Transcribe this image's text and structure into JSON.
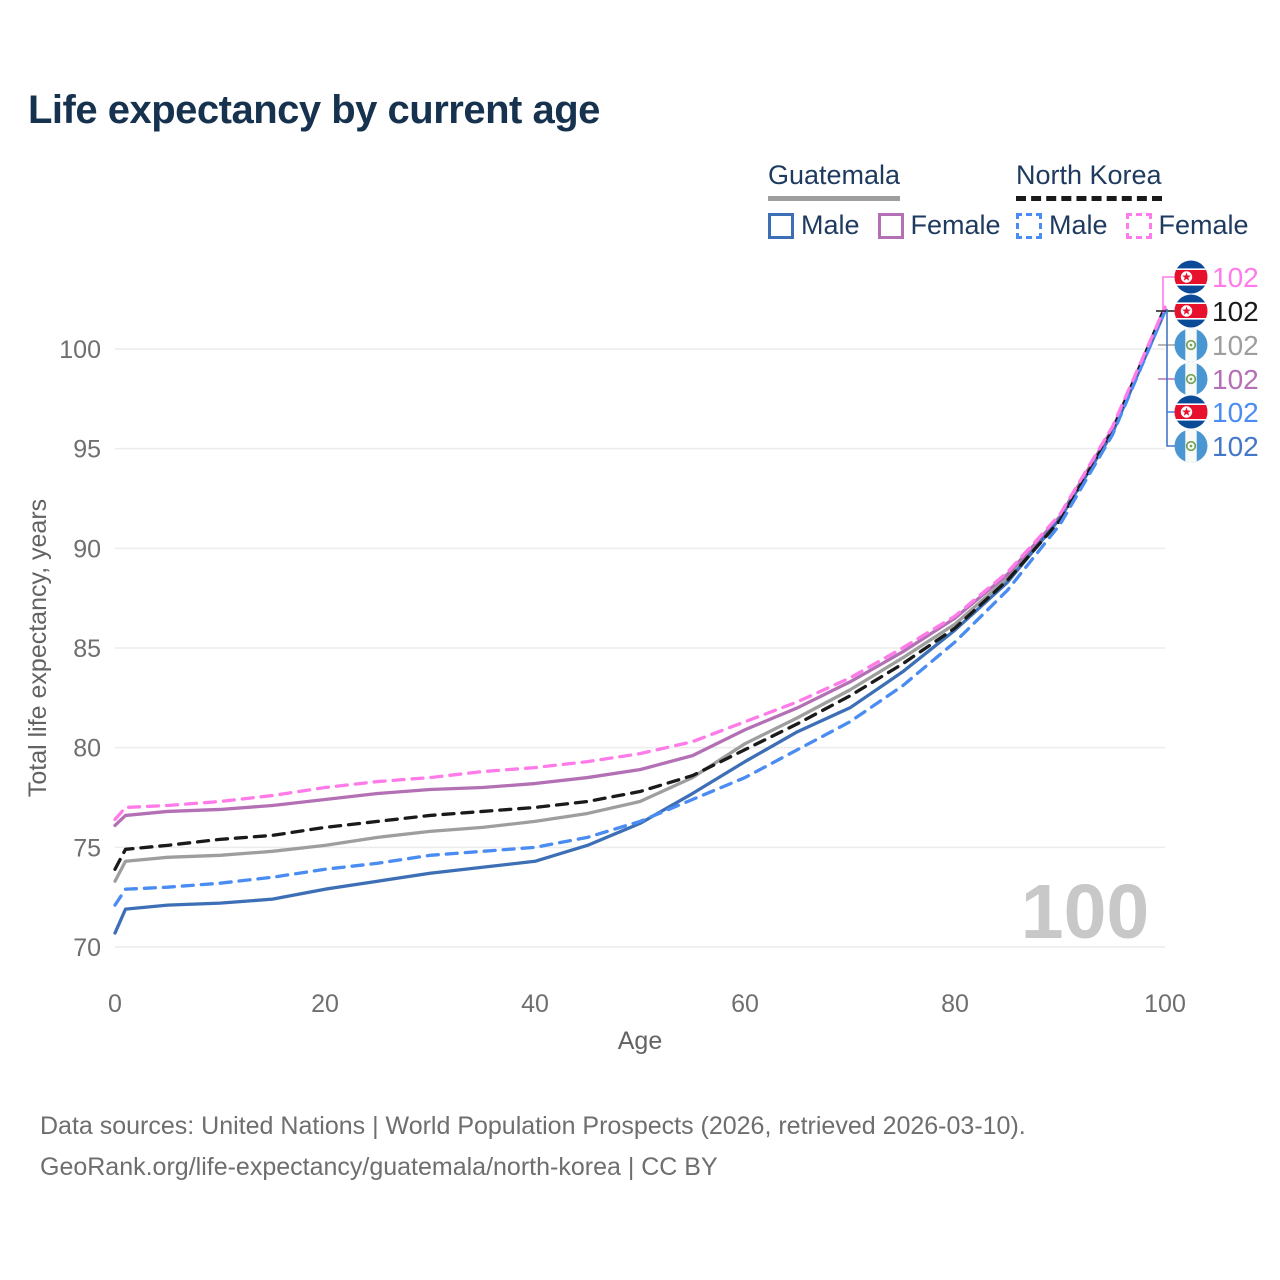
{
  "title": "Life expectancy by current age",
  "legend": {
    "groups": [
      {
        "country": "Guatemala",
        "style": "solid",
        "underline_color": "#9e9e9e",
        "items": [
          {
            "label": "Male",
            "color": "#3d6fb6",
            "dashed": false
          },
          {
            "label": "Female",
            "color": "#b470b4",
            "dashed": false
          }
        ]
      },
      {
        "country": "North Korea",
        "style": "dashed",
        "underline_color": "#1a1a1a",
        "items": [
          {
            "label": "Male",
            "color": "#4a8cf2",
            "dashed": true
          },
          {
            "label": "Female",
            "color": "#ff7bea",
            "dashed": true
          }
        ]
      }
    ]
  },
  "chart_data": {
    "type": "line",
    "title": "Life expectancy by current age",
    "xlabel": "Age",
    "ylabel": "Total life expectancy, years",
    "x_ticks": [
      0,
      20,
      40,
      60,
      80,
      100
    ],
    "y_ticks": [
      70,
      75,
      80,
      85,
      90,
      95,
      100
    ],
    "xlim": [
      0,
      100
    ],
    "ylim": [
      70,
      102.5
    ],
    "grid": "horizontal",
    "legend_position": "top-right",
    "x": [
      0,
      1,
      5,
      10,
      15,
      20,
      25,
      30,
      35,
      40,
      45,
      50,
      55,
      60,
      65,
      70,
      75,
      80,
      85,
      90,
      95,
      100
    ],
    "series": [
      {
        "name": "Guatemala total",
        "country": "Guatemala",
        "color": "#9e9e9e",
        "dash": false,
        "values": [
          73.3,
          74.3,
          74.5,
          74.6,
          74.8,
          75.1,
          75.5,
          75.8,
          76.0,
          76.3,
          76.7,
          77.3,
          78.5,
          80.2,
          81.5,
          82.9,
          84.5,
          86.2,
          88.5,
          91.5,
          95.9,
          102.0
        ]
      },
      {
        "name": "Guatemala Female",
        "country": "Guatemala",
        "color": "#b470b4",
        "dash": false,
        "values": [
          76.1,
          76.6,
          76.8,
          76.9,
          77.1,
          77.4,
          77.7,
          77.9,
          78.0,
          78.2,
          78.5,
          78.9,
          79.6,
          80.9,
          82.0,
          83.3,
          84.8,
          86.5,
          88.7,
          91.6,
          96.0,
          102.0
        ]
      },
      {
        "name": "Guatemala Male",
        "country": "Guatemala",
        "color": "#3d6fb6",
        "dash": false,
        "values": [
          70.7,
          71.9,
          72.1,
          72.2,
          72.4,
          72.9,
          73.3,
          73.7,
          74.0,
          74.3,
          75.1,
          76.2,
          77.7,
          79.3,
          80.8,
          82.0,
          83.8,
          85.9,
          88.3,
          91.5,
          95.8,
          101.9
        ]
      },
      {
        "name": "North Korea total",
        "country": "North Korea",
        "color": "#1a1a1a",
        "dash": true,
        "values": [
          73.9,
          74.9,
          75.1,
          75.4,
          75.6,
          76.0,
          76.3,
          76.6,
          76.8,
          77.0,
          77.3,
          77.8,
          78.6,
          79.9,
          81.2,
          82.6,
          84.2,
          86.0,
          88.4,
          91.4,
          95.9,
          102.1
        ]
      },
      {
        "name": "North Korea Male",
        "country": "North Korea",
        "color": "#4a8cf2",
        "dash": true,
        "values": [
          72.1,
          72.9,
          73.0,
          73.2,
          73.5,
          73.9,
          74.2,
          74.6,
          74.8,
          75.0,
          75.5,
          76.3,
          77.4,
          78.5,
          79.9,
          81.3,
          83.1,
          85.3,
          87.9,
          91.2,
          95.7,
          101.9
        ]
      },
      {
        "name": "North Korea Female",
        "country": "North Korea",
        "color": "#ff7bea",
        "dash": true,
        "values": [
          76.4,
          77.0,
          77.1,
          77.3,
          77.6,
          78.0,
          78.3,
          78.5,
          78.8,
          79.0,
          79.3,
          79.7,
          80.3,
          81.3,
          82.3,
          83.5,
          85.0,
          86.6,
          88.8,
          91.7,
          96.1,
          102.1
        ]
      }
    ]
  },
  "end_labels": [
    {
      "value": "102",
      "color": "#ff7bea",
      "flag": "north-korea-flag-icon",
      "series": "North Korea Female"
    },
    {
      "value": "102",
      "color": "#1a1a1a",
      "flag": "north-korea-flag-icon",
      "series": "North Korea total"
    },
    {
      "value": "102",
      "color": "#9e9e9e",
      "flag": "guatemala-flag-icon",
      "series": "Guatemala total"
    },
    {
      "value": "102",
      "color": "#b470b4",
      "flag": "guatemala-flag-icon",
      "series": "Guatemala Female"
    },
    {
      "value": "102",
      "color": "#4a8cf2",
      "flag": "north-korea-flag-icon",
      "series": "North Korea Male"
    },
    {
      "value": "102",
      "color": "#4577c8",
      "flag": "guatemala-flag-icon",
      "series": "Guatemala Male"
    }
  ],
  "watermark": "100",
  "footer": {
    "line1": "Data sources: United Nations | World Population Prospects (2026, retrieved 2026-03-10).",
    "line2": "GeoRank.org/life-expectancy/guatemala/north-korea | CC BY"
  }
}
